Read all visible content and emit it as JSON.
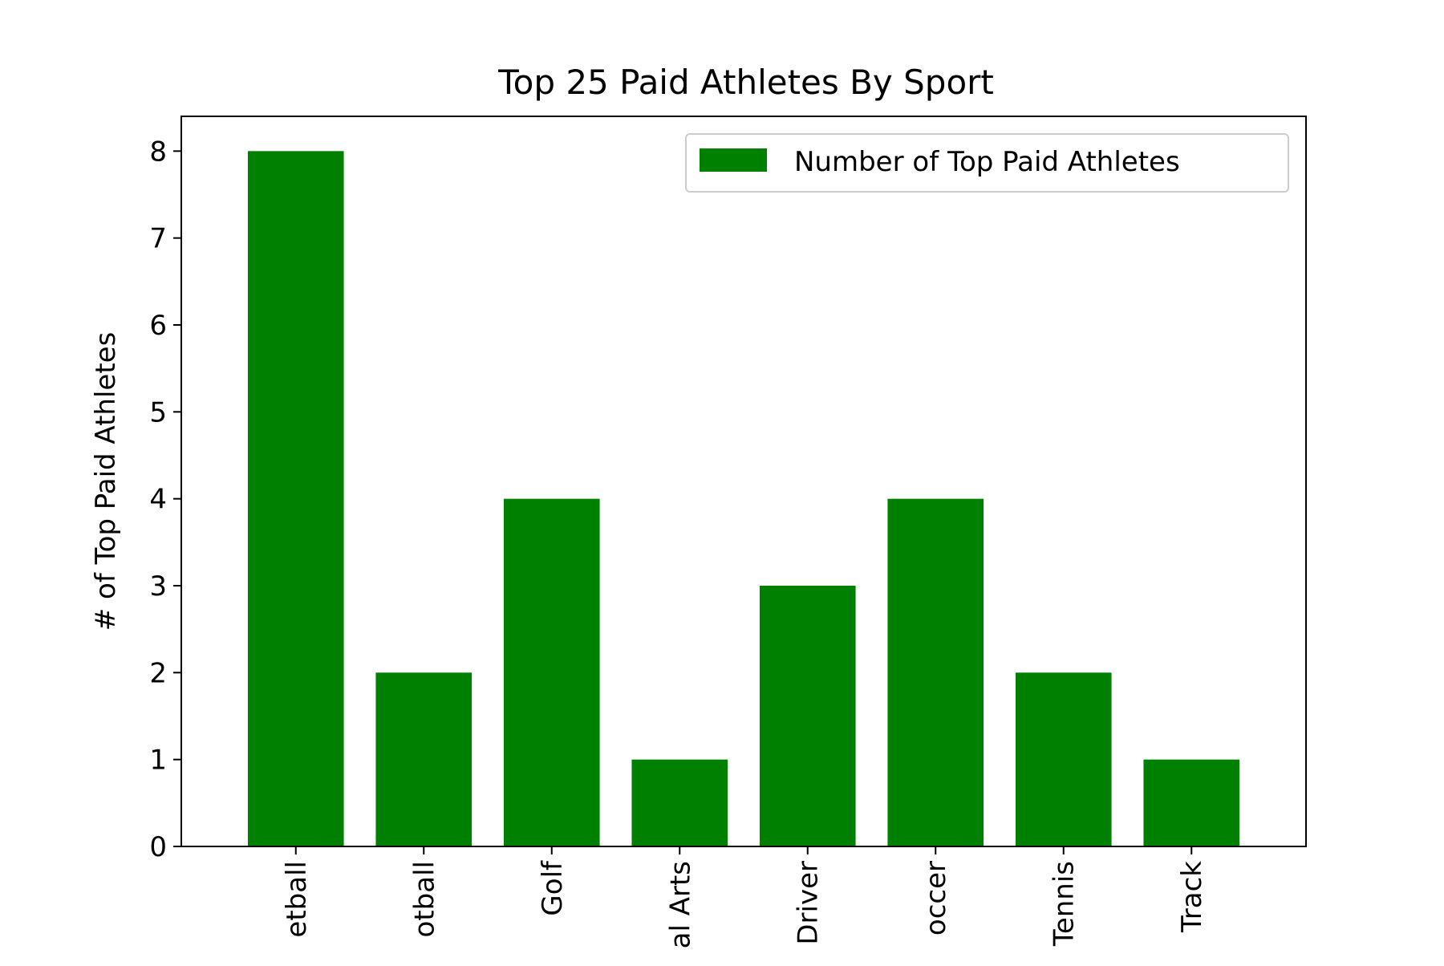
{
  "chart_data": {
    "type": "bar",
    "title": "Top 25 Paid Athletes By Sport",
    "xlabel": "",
    "ylabel": "# of Top Paid Athletes",
    "categories": [
      "Basketball",
      "Football",
      "Golf",
      "Martial Arts",
      "Race Car Driver",
      "Soccer",
      "Tennis",
      "Track"
    ],
    "visible_tick_labels": [
      "etball",
      "otball",
      "Golf",
      "al Arts",
      "Driver",
      "occer",
      "Tennis",
      "Track"
    ],
    "series": [
      {
        "name": "Number of Top Paid Athletes",
        "values": [
          8,
          2,
          4,
          1,
          3,
          4,
          2,
          1
        ],
        "color": "#008000"
      }
    ],
    "ylim": [
      0,
      8.4
    ],
    "yticks": [
      0,
      1,
      2,
      3,
      4,
      5,
      6,
      7,
      8
    ],
    "grid": false,
    "legend_position": "top-right",
    "xtick_rotation": "vertical"
  }
}
